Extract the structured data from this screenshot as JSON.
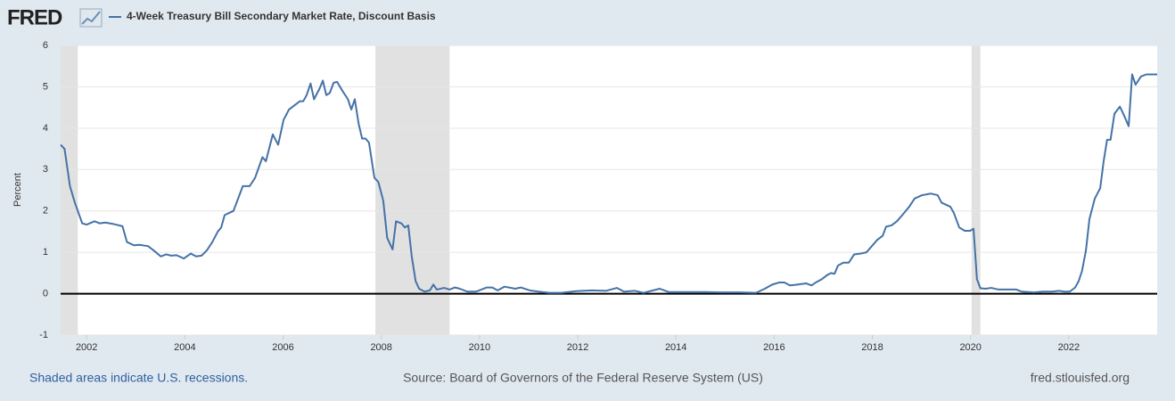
{
  "brand": "FRED",
  "chart_data": {
    "type": "line",
    "y_label": "Percent",
    "xlim": [
      2001.47,
      2023.8
    ],
    "xticks": [
      2002,
      2004,
      2006,
      2008,
      2010,
      2012,
      2014,
      2016,
      2018,
      2020,
      2022
    ],
    "ylim": [
      -1,
      6
    ],
    "yticks": [
      -1,
      0,
      1,
      2,
      3,
      4,
      5,
      6
    ],
    "grid": true,
    "recessions": [
      [
        2001.47,
        2001.82
      ],
      [
        2007.88,
        2009.39
      ],
      [
        2020.02,
        2020.2
      ]
    ],
    "x": [
      2001.47,
      2001.55,
      2001.66,
      2001.76,
      2001.91,
      2002.0,
      2002.16,
      2002.27,
      2002.38,
      2002.56,
      2002.73,
      2002.82,
      2002.96,
      2003.07,
      2003.25,
      2003.36,
      2003.51,
      2003.62,
      2003.72,
      2003.83,
      2003.98,
      2004.12,
      2004.23,
      2004.34,
      2004.45,
      2004.56,
      2004.67,
      2004.74,
      2004.81,
      2004.99,
      2005.18,
      2005.32,
      2005.43,
      2005.58,
      2005.65,
      2005.79,
      2005.9,
      2006.01,
      2006.12,
      2006.23,
      2006.34,
      2006.41,
      2006.48,
      2006.56,
      2006.63,
      2006.74,
      2006.81,
      2006.88,
      2006.95,
      2007.03,
      2007.1,
      2007.21,
      2007.32,
      2007.39,
      2007.46,
      2007.54,
      2007.61,
      2007.68,
      2007.75,
      2007.86,
      2007.94,
      2008.04,
      2008.12,
      2008.23,
      2008.3,
      2008.41,
      2008.48,
      2008.55,
      2008.62,
      2008.7,
      2008.77,
      2008.88,
      2008.99,
      2009.06,
      2009.13,
      2009.28,
      2009.39,
      2009.5,
      2009.6,
      2009.75,
      2009.93,
      2010.15,
      2010.26,
      2010.37,
      2010.51,
      2010.73,
      2010.84,
      2011.02,
      2011.2,
      2011.42,
      2011.67,
      2011.96,
      2012.29,
      2012.58,
      2012.8,
      2012.94,
      2013.16,
      2013.34,
      2013.67,
      2013.85,
      2014.21,
      2014.58,
      2014.94,
      2015.3,
      2015.63,
      2015.81,
      2015.96,
      2016.1,
      2016.21,
      2016.32,
      2016.47,
      2016.65,
      2016.76,
      2016.86,
      2016.97,
      2017.08,
      2017.16,
      2017.23,
      2017.3,
      2017.41,
      2017.52,
      2017.63,
      2017.77,
      2017.88,
      2017.99,
      2018.1,
      2018.21,
      2018.28,
      2018.39,
      2018.5,
      2018.61,
      2018.75,
      2018.86,
      2019.01,
      2019.19,
      2019.33,
      2019.41,
      2019.59,
      2019.66,
      2019.77,
      2019.88,
      2019.99,
      2020.06,
      2020.13,
      2020.2,
      2020.31,
      2020.42,
      2020.57,
      2020.93,
      2021.04,
      2021.29,
      2021.47,
      2021.66,
      2021.8,
      2021.91,
      2022.02,
      2022.13,
      2022.2,
      2022.27,
      2022.35,
      2022.42,
      2022.53,
      2022.64,
      2022.71,
      2022.78,
      2022.85,
      2022.93,
      2023.04,
      2023.11,
      2023.22,
      2023.29,
      2023.36,
      2023.47,
      2023.58,
      2023.8
    ],
    "series": [
      {
        "name": "4-Week Treasury Bill Secondary Market Rate, Discount Basis",
        "color": "#4572a7",
        "values": [
          3.6,
          3.5,
          2.6,
          2.2,
          1.7,
          1.67,
          1.75,
          1.7,
          1.72,
          1.68,
          1.63,
          1.25,
          1.17,
          1.18,
          1.15,
          1.05,
          0.9,
          0.95,
          0.92,
          0.93,
          0.85,
          0.97,
          0.9,
          0.92,
          1.05,
          1.25,
          1.5,
          1.6,
          1.9,
          2.0,
          2.6,
          2.6,
          2.8,
          3.3,
          3.2,
          3.85,
          3.6,
          4.2,
          4.45,
          4.55,
          4.65,
          4.65,
          4.8,
          5.08,
          4.7,
          4.95,
          5.15,
          4.8,
          4.85,
          5.1,
          5.12,
          4.9,
          4.7,
          4.45,
          4.7,
          4.1,
          3.75,
          3.75,
          3.65,
          2.8,
          2.7,
          2.25,
          1.35,
          1.07,
          1.75,
          1.7,
          1.6,
          1.65,
          0.9,
          0.3,
          0.12,
          0.05,
          0.08,
          0.22,
          0.1,
          0.14,
          0.1,
          0.15,
          0.12,
          0.05,
          0.05,
          0.15,
          0.15,
          0.08,
          0.17,
          0.12,
          0.15,
          0.08,
          0.05,
          0.02,
          0.02,
          0.06,
          0.08,
          0.07,
          0.14,
          0.05,
          0.07,
          0.02,
          0.12,
          0.04,
          0.04,
          0.04,
          0.03,
          0.03,
          0.02,
          0.12,
          0.22,
          0.27,
          0.27,
          0.2,
          0.22,
          0.25,
          0.2,
          0.28,
          0.35,
          0.45,
          0.5,
          0.48,
          0.68,
          0.75,
          0.75,
          0.95,
          0.97,
          1.0,
          1.15,
          1.3,
          1.4,
          1.62,
          1.65,
          1.75,
          1.9,
          2.1,
          2.3,
          2.38,
          2.42,
          2.38,
          2.2,
          2.1,
          1.95,
          1.6,
          1.52,
          1.52,
          1.57,
          0.35,
          0.13,
          0.12,
          0.14,
          0.1,
          0.1,
          0.05,
          0.03,
          0.05,
          0.05,
          0.07,
          0.05,
          0.05,
          0.15,
          0.3,
          0.55,
          1.05,
          1.8,
          2.3,
          2.55,
          3.2,
          3.72,
          3.72,
          4.35,
          4.52,
          4.35,
          4.05,
          5.3,
          5.05,
          5.25,
          5.3,
          5.3
        ]
      }
    ]
  },
  "footer": {
    "recession_note": "Shaded areas indicate U.S. recessions.",
    "source": "Source: Board of Governors of the Federal Reserve System (US)",
    "site": "fred.stlouisfed.org"
  }
}
